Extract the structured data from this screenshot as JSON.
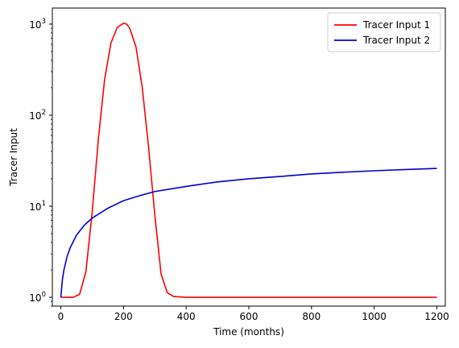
{
  "chart_data": {
    "type": "line",
    "title": "",
    "xlabel": "Time (months)",
    "ylabel": "Tracer Input",
    "xlim": [
      -27,
      1227
    ],
    "ylim": [
      0.8,
      1500
    ],
    "yscale": "log",
    "grid": false,
    "legend_position": "top-right",
    "x_ticks": [
      0,
      200,
      400,
      600,
      800,
      1000,
      1200
    ],
    "y_ticks": [
      {
        "value": 1,
        "base": "10",
        "exp": "0"
      },
      {
        "value": 10,
        "base": "10",
        "exp": "1"
      },
      {
        "value": 100,
        "base": "10",
        "exp": "2"
      },
      {
        "value": 1000,
        "base": "10",
        "exp": "3"
      }
    ],
    "series": [
      {
        "name": "Tracer Input 1",
        "color": "#ff0000",
        "x": [
          0,
          20,
          40,
          60,
          80,
          100,
          120,
          140,
          160,
          180,
          200,
          210,
          220,
          240,
          260,
          280,
          300,
          320,
          340,
          360,
          400,
          500,
          600,
          700,
          800,
          900,
          1000,
          1100,
          1200
        ],
        "y": [
          1.0,
          1.0,
          1.0,
          1.08,
          1.9,
          8.5,
          55,
          250,
          620,
          920,
          1020,
          1000,
          900,
          560,
          200,
          45,
          8,
          1.8,
          1.12,
          1.02,
          1.0,
          1.0,
          1.0,
          1.0,
          1.0,
          1.0,
          1.0,
          1.0,
          1.0
        ]
      },
      {
        "name": "Tracer Input 2",
        "color": "#0000cd",
        "x": [
          0,
          5,
          10,
          20,
          30,
          50,
          75,
          100,
          150,
          200,
          250,
          300,
          400,
          500,
          600,
          700,
          800,
          900,
          1000,
          1100,
          1200
        ],
        "y": [
          1.0,
          1.55,
          2.0,
          2.8,
          3.5,
          4.8,
          6.2,
          7.4,
          9.5,
          11.5,
          13.0,
          14.5,
          16.5,
          18.5,
          20.0,
          21.2,
          22.6,
          23.6,
          24.5,
          25.3,
          26.0
        ]
      }
    ]
  }
}
